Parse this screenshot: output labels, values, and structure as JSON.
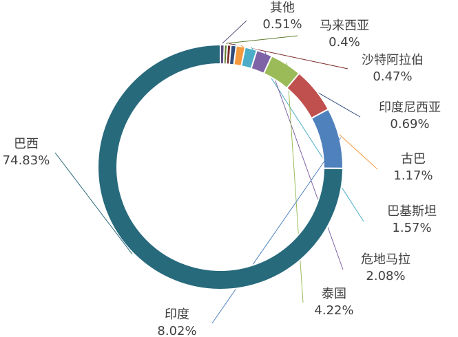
{
  "chart_data": {
    "type": "donut",
    "categories": [
      "其他",
      "马来西亚",
      "沙特阿拉伯",
      "印度尼西亚",
      "古巴",
      "巴基斯坦",
      "危地马拉",
      "泰国",
      null,
      "印度",
      "巴西"
    ],
    "values": [
      0.51,
      0.4,
      0.47,
      0.69,
      1.17,
      1.57,
      2.08,
      4.22,
      6.04,
      8.02,
      74.83
    ],
    "value_labels": [
      "0.51%",
      "0.4%",
      "0.47%",
      "0.69%",
      "1.17%",
      "1.57%",
      "2.08%",
      "4.22%",
      null,
      "8.02%",
      "74.83%"
    ],
    "colors": [
      "#5b4b7d",
      "#5f7b2e",
      "#7b2b2a",
      "#2e4b7c",
      "#f4993d",
      "#4badc7",
      "#7e63a7",
      "#9bbb59",
      "#c0504d",
      "#4f81bd",
      "#276a7c"
    ]
  }
}
